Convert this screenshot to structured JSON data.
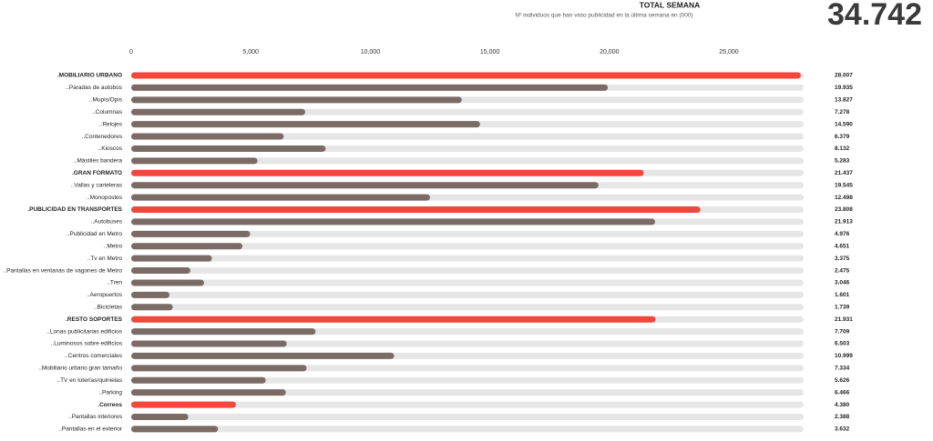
{
  "chart_data": {
    "type": "bar",
    "orientation": "horizontal",
    "title": "TOTAL SEMANA",
    "subtitle": "Nº individuos que han visto publicidad en la última semana en (000)",
    "total": "34.742",
    "color": "#7a6b67",
    "highlight_color": "#f2473c",
    "track_color": "#e6e6e6",
    "categories": [
      ".MOBILIARIO URBANO",
      "..Paradas de autobús",
      "..Mupis/Opis",
      "..Columnas",
      "..Relojes",
      "..Contenedores",
      "..Kioscos",
      "..Mástiles bandera",
      ".GRAN FORMATO",
      "..Vallas y carteleras",
      "..Monopostes",
      ".PUBLICIDAD EN TRANSPORTES",
      "..Autobuses",
      "..Publicidad en Metro",
      "..Metro",
      "..Tv en Metro",
      "..Pantallas en ventanas de vagones de Metro",
      "..Tren",
      "..Aeropuertos",
      "..Bicicletas",
      ".RESTO SOPORTES",
      "..Lonas publicitarias edificios",
      "..Luminosos sobre edificios",
      "..Centros comerciales",
      "..Mobiliario urbano gran tamaño",
      "..TV en loterías/quinielas",
      "..Parking",
      ".Correos",
      "..Pantallas interiores",
      "..Pantallas en el exterior"
    ],
    "values": [
      28007,
      19935,
      13827,
      7278,
      14590,
      6379,
      8132,
      5283,
      21437,
      19545,
      12498,
      23808,
      21913,
      4976,
      4651,
      3375,
      2475,
      3046,
      1601,
      1739,
      21931,
      7709,
      6503,
      10999,
      7334,
      5626,
      6466,
      4380,
      2388,
      3632
    ],
    "value_labels": [
      "28.007",
      "19.935",
      "13.827",
      "7.278",
      "14.590",
      "6.379",
      "8.132",
      "5.283",
      "21.437",
      "19.545",
      "12.498",
      "23.808",
      "21.913",
      "4.976",
      "4.651",
      "3.375",
      "2.475",
      "3.046",
      "1.601",
      "1.739",
      "21.931",
      "7.709",
      "6.503",
      "10.999",
      "7.334",
      "5.626",
      "6.466",
      "4.380",
      "2.388",
      "3.632"
    ],
    "highlighted": [
      true,
      false,
      false,
      false,
      false,
      false,
      false,
      false,
      true,
      false,
      false,
      true,
      false,
      false,
      false,
      false,
      false,
      false,
      false,
      false,
      true,
      false,
      false,
      false,
      false,
      false,
      false,
      true,
      false,
      false
    ],
    "xlim": [
      0,
      28125
    ],
    "xticks": [
      0,
      {
        "value": 5000,
        "label": "5,000"
      },
      {
        "value": 10000,
        "label": "10,000"
      },
      {
        "value": 15000,
        "label": "15,000"
      },
      {
        "value": 20000,
        "label": "20,000"
      },
      {
        "value": 25000,
        "label": "25,000"
      }
    ]
  }
}
